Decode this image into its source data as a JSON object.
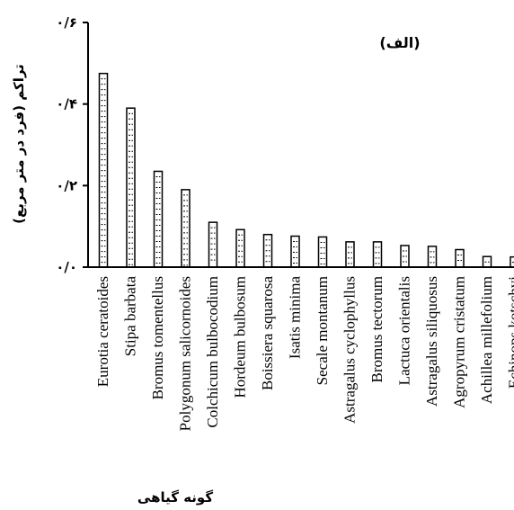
{
  "chart_data": {
    "type": "bar",
    "panel_label": "(الف)",
    "xlabel": "گونه گیاهی",
    "ylabel": "تراکم (فرد در متر مربع)",
    "ylim": [
      0,
      0.6
    ],
    "yticks": [
      {
        "value": 0,
        "label": "۰/۰"
      },
      {
        "value": 0.2,
        "label": "۰/۲"
      },
      {
        "value": 0.4,
        "label": "۰/۴"
      },
      {
        "value": 0.6,
        "label": "۰/۶"
      }
    ],
    "categories": [
      "Eurotia ceratoides",
      "Stipa barbata",
      "Bromus tomentellus",
      "Polygonum salicornoides",
      "Colchicum bulbocodium",
      "Hordeum bulbosum",
      "Boissiera squarosa",
      "Isatis minima",
      "Secale montanum",
      "Astragalus cyclophyllus",
      "Bromus tectorum",
      "Lactuca orientalis",
      "Astragalus siliquosus",
      "Agropyrum cristatum",
      "Achillea millefolium",
      "Echinops kotschyi"
    ],
    "values": [
      0.475,
      0.39,
      0.235,
      0.19,
      0.11,
      0.092,
      0.08,
      0.076,
      0.074,
      0.062,
      0.062,
      0.053,
      0.051,
      0.043,
      0.026,
      0.025
    ],
    "bar_fill": "#ffffff",
    "bar_stroke": "#000000",
    "grid": false
  }
}
